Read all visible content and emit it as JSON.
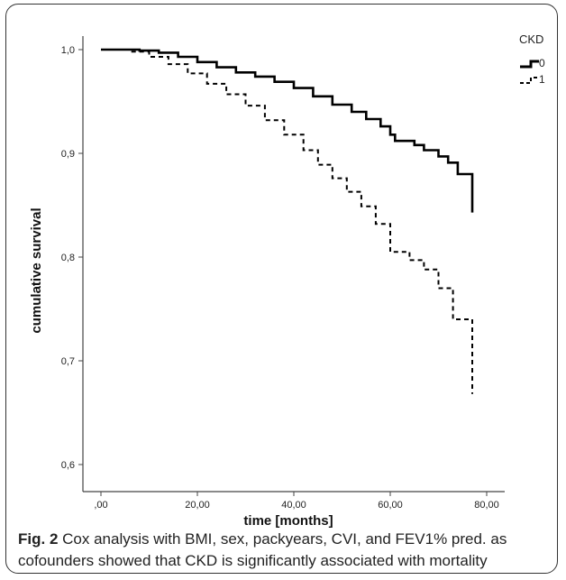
{
  "chart_data": {
    "type": "line",
    "title": "",
    "xlabel": "time [months]",
    "ylabel": "cumulative survival",
    "xlim": [
      0,
      80
    ],
    "ylim": [
      0.6,
      1.0
    ],
    "x_ticks": [
      ",00",
      "20,00",
      "40,00",
      "60,00",
      "80,00"
    ],
    "y_ticks": [
      "0,6",
      "0,7",
      "0,8",
      "0,9",
      "1,0"
    ],
    "legend_title": "CKD",
    "legend_position": "top-right",
    "grid": false,
    "series": [
      {
        "name": "0",
        "style": "solid",
        "color": "#000000",
        "x": [
          0,
          8,
          12,
          16,
          20,
          24,
          28,
          32,
          36,
          40,
          44,
          48,
          52,
          55,
          58,
          60,
          61,
          65,
          67,
          70,
          72,
          74,
          77,
          77
        ],
        "y": [
          1.0,
          0.999,
          0.997,
          0.993,
          0.988,
          0.983,
          0.978,
          0.974,
          0.969,
          0.963,
          0.955,
          0.947,
          0.94,
          0.933,
          0.926,
          0.918,
          0.912,
          0.908,
          0.903,
          0.897,
          0.891,
          0.88,
          0.873,
          0.843
        ]
      },
      {
        "name": "1",
        "style": "dashed",
        "color": "#000000",
        "x": [
          0,
          6,
          10,
          14,
          18,
          22,
          26,
          30,
          34,
          38,
          42,
          45,
          48,
          51,
          54,
          57,
          60,
          64,
          67,
          70,
          73,
          77,
          77
        ],
        "y": [
          1.0,
          0.998,
          0.993,
          0.986,
          0.977,
          0.967,
          0.957,
          0.946,
          0.932,
          0.918,
          0.903,
          0.889,
          0.876,
          0.863,
          0.849,
          0.832,
          0.805,
          0.797,
          0.788,
          0.77,
          0.74,
          0.73,
          0.668
        ]
      }
    ]
  },
  "caption": {
    "label": "Fig. 2",
    "text": " Cox analysis with BMI, sex, packyears, CVI, and FEV1% pred. as cofounders showed that CKD is significantly associated with mortality"
  }
}
